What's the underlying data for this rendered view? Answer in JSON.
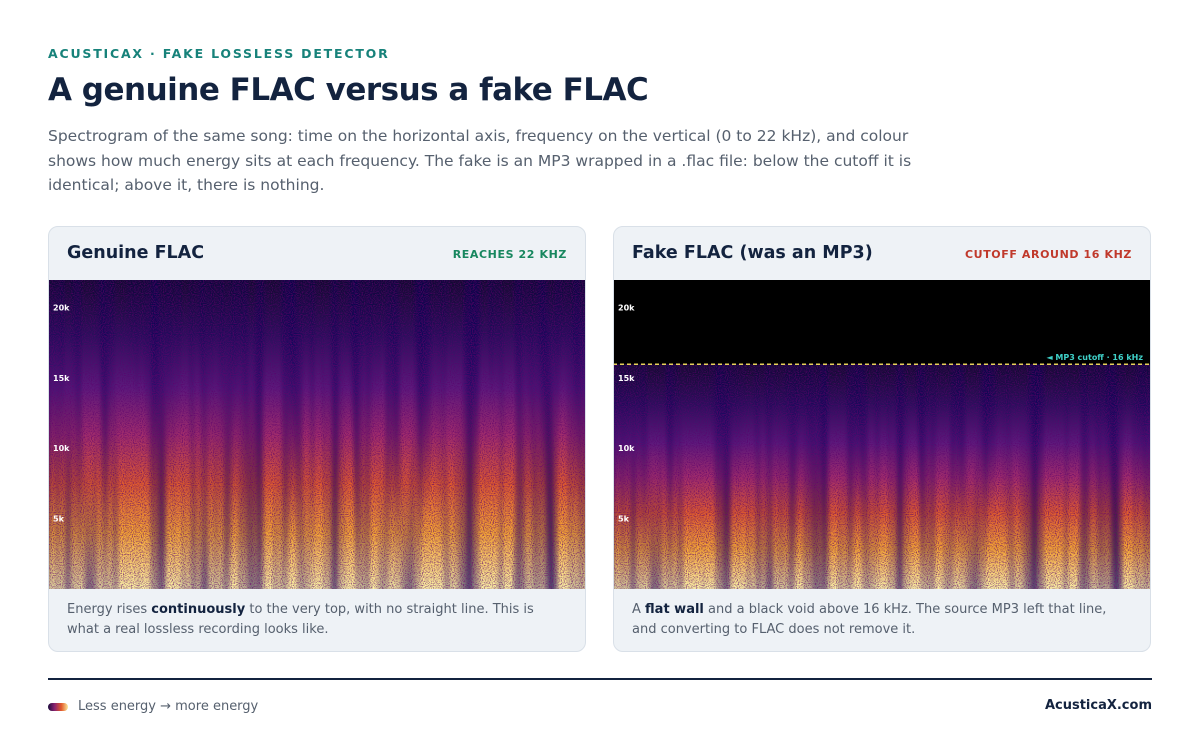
{
  "header": {
    "eyebrow": "ACUSTICAX · FAKE LOSSLESS DETECTOR",
    "title": "A genuine FLAC versus a fake FLAC",
    "description": "Spectrogram of the same song: time on the horizontal axis, frequency on the vertical (0 to 22 kHz), and colour shows how much energy sits at each frequency. The fake is an MP3 wrapped in a .flac file: below the cutoff it is identical; above it, there is nothing."
  },
  "panels": [
    {
      "title": "Genuine FLAC",
      "badge": "REACHES 22 KHZ",
      "axis_labels": [
        "20k",
        "15k",
        "10k",
        "5k"
      ],
      "caption": {
        "before": "Energy rises ",
        "strong": "continuously",
        "after": " to the very top, with no straight line. This is what a real lossless recording looks like."
      }
    },
    {
      "title": "Fake FLAC (was an MP3)",
      "badge": "CUTOFF AROUND 16 KHZ",
      "axis_labels": [
        "20k",
        "15k",
        "10k",
        "5k"
      ],
      "cutoff_label": "◄ MP3 cutoff · 16 kHz",
      "caption": {
        "before": "A ",
        "strong": "flat wall",
        "after": " and a black void above 16 kHz. The source MP3 left that line, and converting to FLAC does not remove it."
      }
    }
  ],
  "footer": {
    "legend": "Less energy → more energy",
    "brand": "AcusticaX.com"
  }
}
